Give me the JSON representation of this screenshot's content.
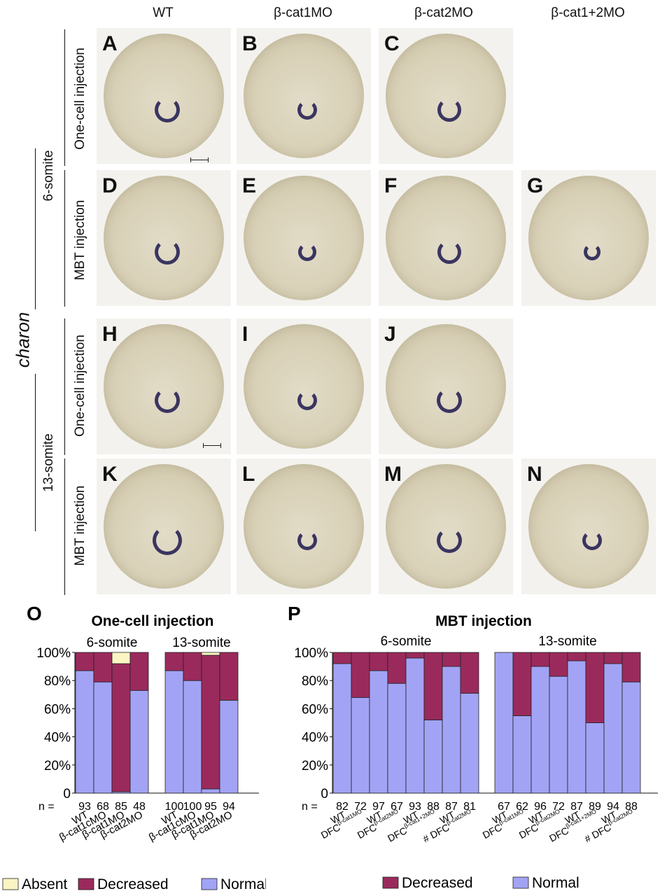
{
  "columns": [
    "WT",
    "β-cat1MO",
    "β-cat2MO",
    "β-cat1+2MO"
  ],
  "gene_label": "charon",
  "stage_labels": [
    "6-somite",
    "13-somite"
  ],
  "row_labels": [
    "One-cell injection",
    "MBT injection",
    "One-cell injection",
    "MBT injection"
  ],
  "panel_letters": [
    "A",
    "B",
    "C",
    "D",
    "E",
    "F",
    "G",
    "H",
    "I",
    "J",
    "K",
    "L",
    "M",
    "N"
  ],
  "chart_data": [
    {
      "type": "bar",
      "panel_letter": "O",
      "title": "One-cell injection",
      "ytick_labels": [
        "0",
        "20%",
        "40%",
        "60%",
        "80%",
        "100%"
      ],
      "ylim": [
        0,
        100
      ],
      "n_label": "n =",
      "groups": [
        {
          "name": "6-somite",
          "categories": [
            "WT",
            "β-cat1cMO",
            "β-cat1MO",
            "β-cat2MO"
          ],
          "n": [
            "93",
            "68",
            "85",
            "48"
          ],
          "series": [
            {
              "name": "Normal",
              "values": [
                87,
                79,
                1,
                73
              ]
            },
            {
              "name": "Decreased",
              "values": [
                13,
                21,
                91,
                27
              ]
            },
            {
              "name": "Absent",
              "values": [
                0,
                0,
                8,
                0
              ]
            }
          ]
        },
        {
          "name": "13-somite",
          "categories": [
            "WT",
            "β-cat1cMO",
            "β-cat1MO",
            "β-cat2MO"
          ],
          "n": [
            "100",
            "100",
            "95",
            "94"
          ],
          "series": [
            {
              "name": "Normal",
              "values": [
                87,
                80,
                3,
                66
              ]
            },
            {
              "name": "Decreased",
              "values": [
                13,
                20,
                95,
                34
              ]
            },
            {
              "name": "Absent",
              "values": [
                0,
                0,
                2,
                0
              ]
            }
          ]
        }
      ],
      "legend": [
        "Absent",
        "Decreased",
        "Normal"
      ]
    },
    {
      "type": "bar",
      "panel_letter": "P",
      "title": "MBT injection",
      "ytick_labels": [
        "0",
        "20%",
        "40%",
        "60%",
        "80%",
        "100%"
      ],
      "ylim": [
        0,
        100
      ],
      "n_label": "n =",
      "groups": [
        {
          "name": "6-somite",
          "categories": [
            {
              "prefix": "",
              "main": "WT",
              "sup": ""
            },
            {
              "prefix": "",
              "main": "DFC",
              "sup": "β-cat1MO"
            },
            {
              "prefix": "",
              "main": "WT",
              "sup": ""
            },
            {
              "prefix": "",
              "main": "DFC",
              "sup": "β-cat2MO"
            },
            {
              "prefix": "",
              "main": "WT",
              "sup": ""
            },
            {
              "prefix": "",
              "main": "DFC",
              "sup": "β-cat1+2MO"
            },
            {
              "prefix": "",
              "main": "WT",
              "sup": ""
            },
            {
              "prefix": "# ",
              "main": "DFC",
              "sup": "β-cat2MO"
            }
          ],
          "n": [
            "82",
            "72",
            "97",
            "67",
            "93",
            "88",
            "87",
            "81"
          ],
          "series": [
            {
              "name": "Normal",
              "values": [
                92,
                68,
                87,
                78,
                96,
                52,
                90,
                71
              ]
            },
            {
              "name": "Decreased",
              "values": [
                8,
                32,
                13,
                22,
                4,
                48,
                10,
                29
              ]
            }
          ]
        },
        {
          "name": "13-somite",
          "categories": [
            {
              "prefix": "",
              "main": "WT",
              "sup": ""
            },
            {
              "prefix": "",
              "main": "DFC",
              "sup": "β-cat1MO"
            },
            {
              "prefix": "",
              "main": "WT",
              "sup": ""
            },
            {
              "prefix": "",
              "main": "DFC",
              "sup": "β-cat2MO"
            },
            {
              "prefix": "",
              "main": "WT",
              "sup": ""
            },
            {
              "prefix": "",
              "main": "DFC",
              "sup": "β-cat1+2MO"
            },
            {
              "prefix": "",
              "main": "WT",
              "sup": ""
            },
            {
              "prefix": "# ",
              "main": "DFC",
              "sup": "β-cat2MO"
            }
          ],
          "n": [
            "67",
            "62",
            "96",
            "72",
            "87",
            "89",
            "94",
            "88"
          ],
          "series": [
            {
              "name": "Normal",
              "values": [
                100,
                55,
                90,
                83,
                94,
                50,
                92,
                79
              ]
            },
            {
              "name": "Decreased",
              "values": [
                0,
                45,
                10,
                17,
                6,
                50,
                8,
                21
              ]
            }
          ]
        }
      ],
      "legend": [
        "Decreased",
        "Normal"
      ]
    }
  ],
  "colors": {
    "normal": "#a3a3f5",
    "decreased": "#9b2a5c",
    "absent": "#fbf5c4",
    "kupffer_vesicle": "#3a3560"
  }
}
